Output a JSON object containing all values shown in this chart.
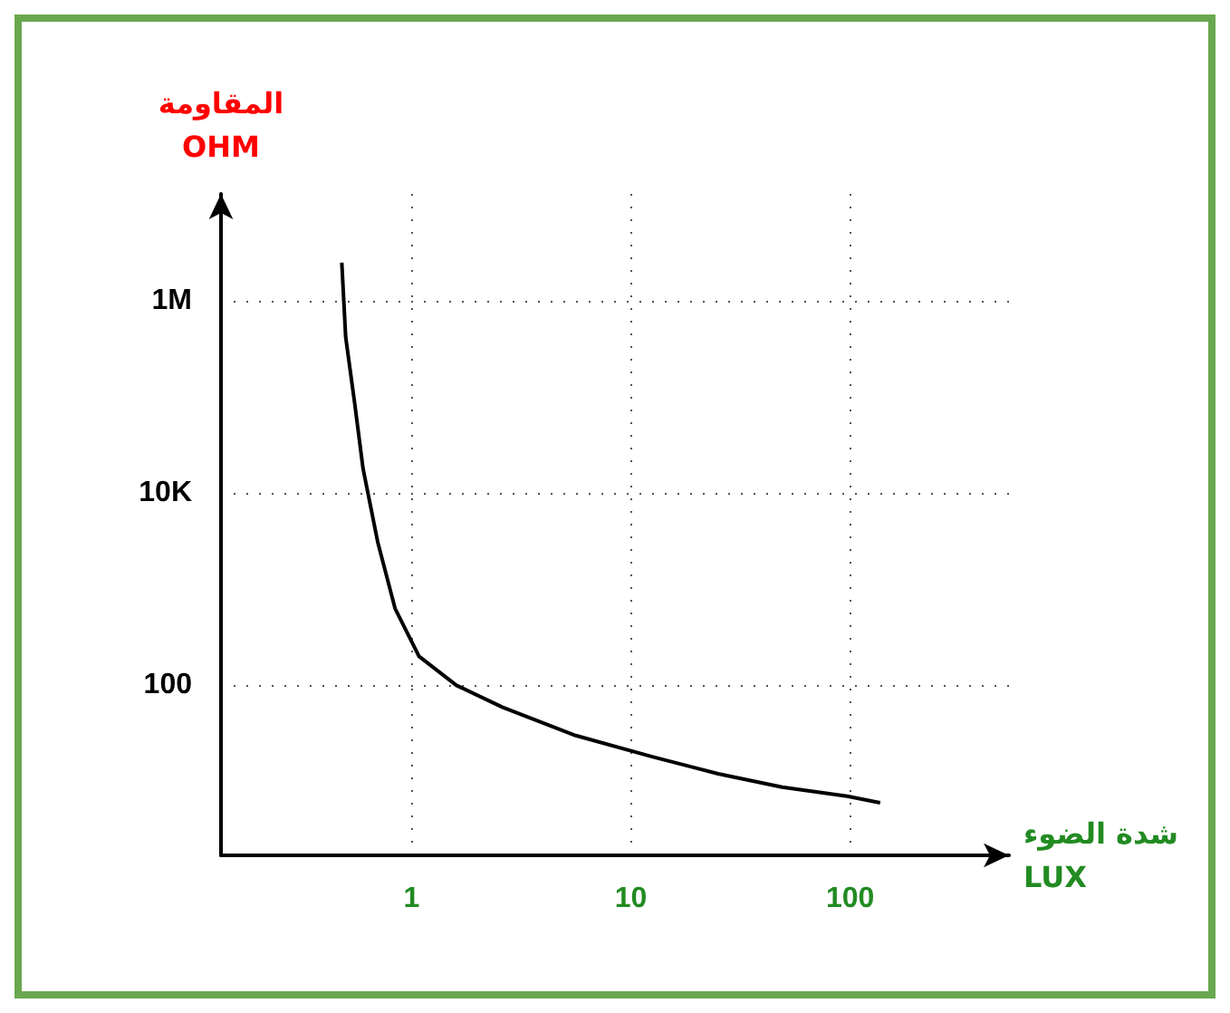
{
  "chart_data": {
    "type": "line",
    "xlabel": "شدة الضوء\nLUX",
    "ylabel": "المقاومة\nOHM",
    "log": "xy",
    "x": [
      0.48,
      0.5,
      0.55,
      0.6,
      0.7,
      0.84,
      1.08,
      1.6,
      2.6,
      5.6,
      12.6,
      25,
      49,
      97,
      137
    ],
    "series": [
      {
        "color": "#000000",
        "values": [
          2500000,
          420000,
          85000,
          18000,
          3100,
          630,
          200,
          100,
          59,
          30,
          18,
          12,
          8.7,
          7,
          6
        ]
      }
    ],
    "xlim": [
      0.135,
      530
    ],
    "ylim": [
      1.7,
      13000000
    ],
    "xticks": [
      1,
      10,
      100
    ],
    "yticks": [
      {
        "value": 100,
        "label": "100"
      },
      {
        "value": 10000,
        "label": "10K"
      },
      {
        "value": 1000000,
        "label": "1M"
      }
    ],
    "grid": true,
    "line_style": "solid",
    "marker": "none"
  }
}
